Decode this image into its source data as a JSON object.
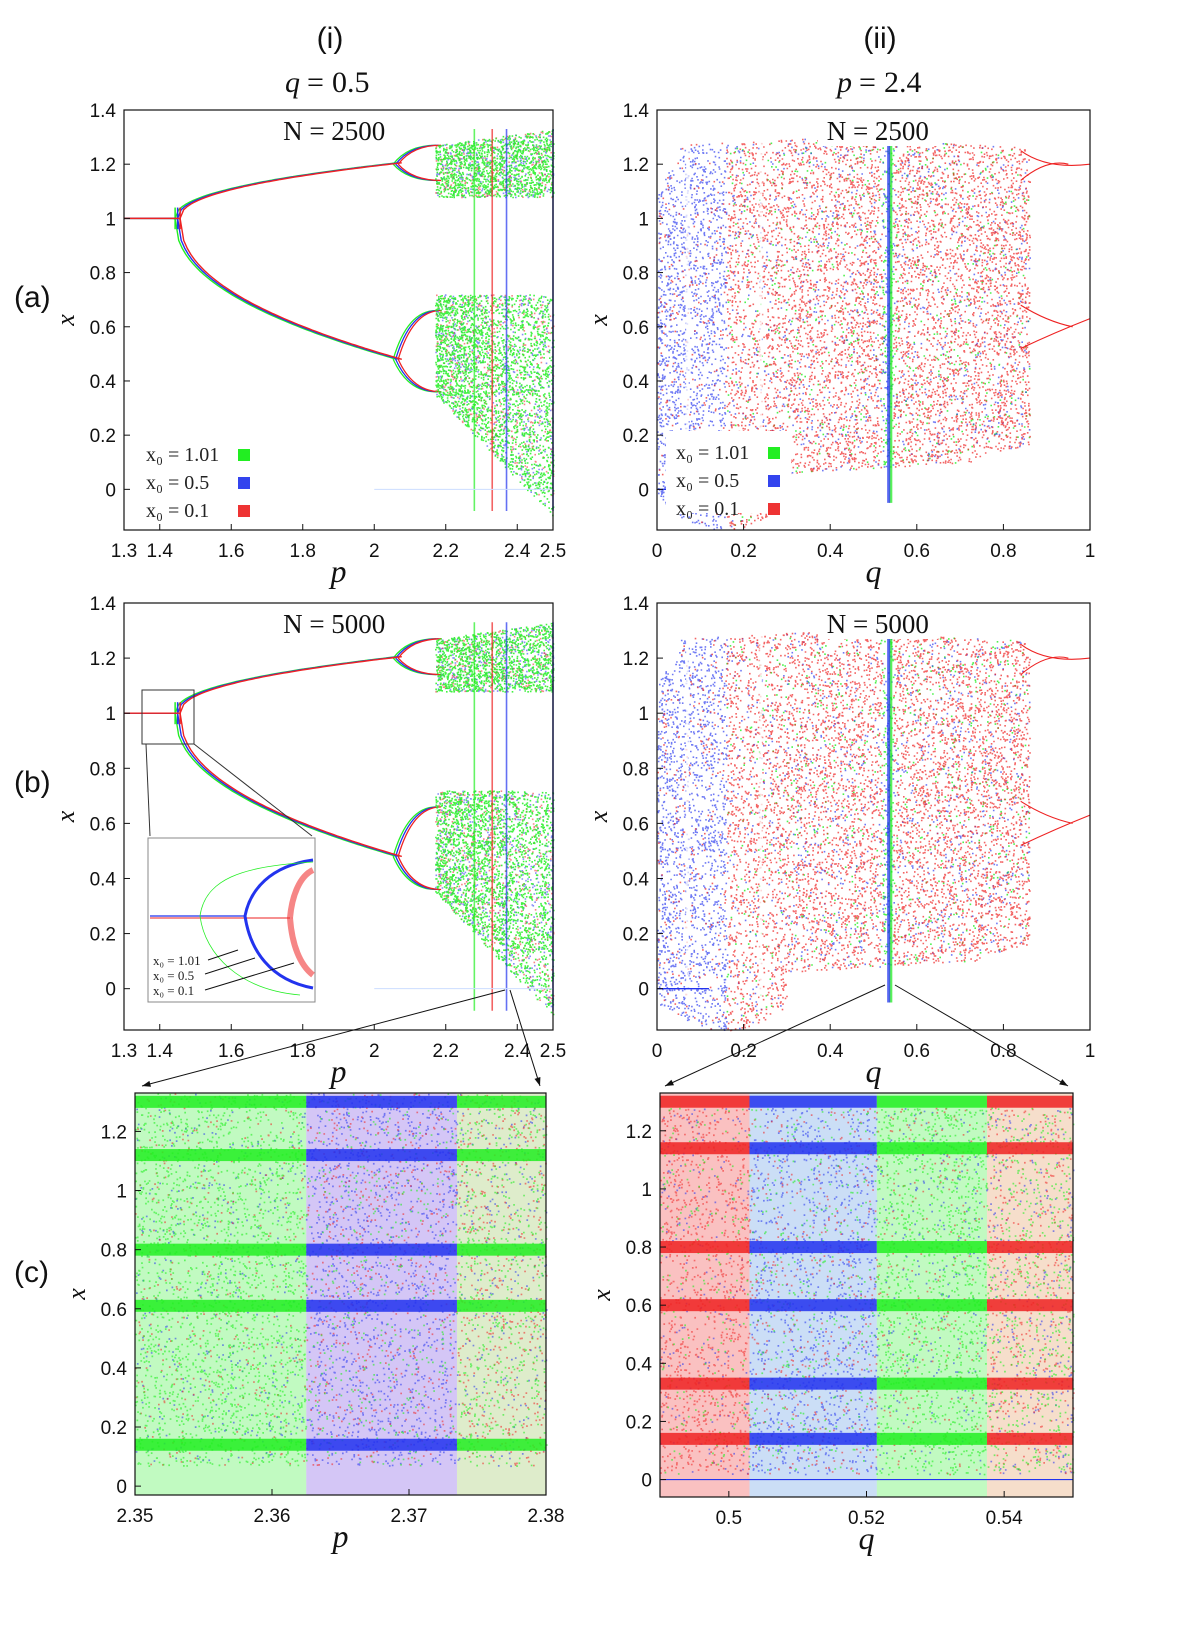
{
  "columns": [
    {
      "label": "(i)",
      "param_symbol": "q",
      "param_value": "0.5"
    },
    {
      "label": "(ii)",
      "param_symbol": "p",
      "param_value": "2.4"
    }
  ],
  "rows": [
    "(a)",
    "(b)",
    "(c)"
  ],
  "legend": {
    "items": [
      {
        "text": "x₀ = 1.01",
        "color": "#22ee22"
      },
      {
        "text": "x₀ = 0.5",
        "color": "#3344ee"
      },
      {
        "text": "x₀ = 0.1",
        "color": "#ee3333"
      }
    ]
  },
  "colors": {
    "green": "#22ee22",
    "blue": "#2233ee",
    "red": "#ee2222",
    "axis": "#111111"
  },
  "chart_data": [
    {
      "id": "a-i",
      "type": "scatter",
      "title": "N = 2500",
      "xlabel": "p",
      "ylabel": "x",
      "xlim": [
        1.3,
        2.5
      ],
      "ylim": [
        -0.15,
        1.4
      ],
      "xticks": [
        1.3,
        1.4,
        1.6,
        1.8,
        2,
        2.2,
        2.4,
        2.5
      ],
      "xtick_labels": [
        "1.3",
        "1.4",
        "1.6",
        "1.8",
        "2",
        "2.2",
        "2.4",
        "2.5"
      ],
      "yticks": [
        0,
        0.2,
        0.4,
        0.6,
        0.8,
        1,
        1.2,
        1.4
      ],
      "ytick_labels": [
        "0",
        "0.2",
        "0.4",
        "0.6",
        "0.8",
        "1",
        "1.2",
        "1.4"
      ],
      "description_values": {
        "fixed_point": 1,
        "first_bifurcation_p": 1.45,
        "period2_upper": 1.2,
        "period2_lower": 0.48,
        "period4_onset_p": 2.06,
        "chaos_onset_p": 2.2
      },
      "legend": true
    },
    {
      "id": "a-ii",
      "type": "scatter",
      "title": "N = 2500",
      "xlabel": "q",
      "ylabel": "x",
      "xlim": [
        0,
        1
      ],
      "ylim": [
        -0.15,
        1.4
      ],
      "xticks": [
        0,
        0.2,
        0.4,
        0.6,
        0.8,
        1
      ],
      "xtick_labels": [
        "0",
        "0.2",
        "0.4",
        "0.6",
        "0.8",
        "1"
      ],
      "yticks": [
        0,
        0.2,
        0.4,
        0.6,
        0.8,
        1,
        1.2,
        1.4
      ],
      "ytick_labels": [
        "0",
        "0.2",
        "0.4",
        "0.6",
        "0.8",
        "1",
        "1.2",
        "1.4"
      ],
      "legend": true
    },
    {
      "id": "b-i",
      "type": "scatter",
      "title": "N = 5000",
      "xlabel": "p",
      "ylabel": "x",
      "xlim": [
        1.3,
        2.5
      ],
      "ylim": [
        -0.15,
        1.4
      ],
      "xticks": [
        1.3,
        1.4,
        1.6,
        1.8,
        2,
        2.2,
        2.4,
        2.5
      ],
      "xtick_labels": [
        "1.3",
        "1.4",
        "1.6",
        "1.8",
        "2",
        "2.2",
        "2.4",
        "2.5"
      ],
      "yticks": [
        0,
        0.2,
        0.4,
        0.6,
        0.8,
        1,
        1.2,
        1.4
      ],
      "ytick_labels": [
        "0",
        "0.2",
        "0.4",
        "0.6",
        "0.8",
        "1",
        "1.2",
        "1.4"
      ],
      "inset": {
        "legend": [
          "x₀ = 1.01",
          "x₀ = 0.5",
          "x₀ = 0.1"
        ]
      }
    },
    {
      "id": "b-ii",
      "type": "scatter",
      "title": "N = 5000",
      "xlabel": "q",
      "ylabel": "x",
      "xlim": [
        0,
        1
      ],
      "ylim": [
        -0.15,
        1.4
      ],
      "xticks": [
        0,
        0.2,
        0.4,
        0.6,
        0.8,
        1
      ],
      "xtick_labels": [
        "0",
        "0.2",
        "0.4",
        "0.6",
        "0.8",
        "1"
      ],
      "yticks": [
        0,
        0.2,
        0.4,
        0.6,
        0.8,
        1,
        1.2,
        1.4
      ],
      "ytick_labels": [
        "0",
        "0.2",
        "0.4",
        "0.6",
        "0.8",
        "1",
        "1.2",
        "1.4"
      ]
    },
    {
      "id": "c-i",
      "type": "scatter",
      "title": "",
      "xlabel": "p",
      "ylabel": "x",
      "xlim": [
        2.35,
        2.38
      ],
      "ylim": [
        -0.03,
        1.33
      ],
      "xticks": [
        2.35,
        2.36,
        2.37,
        2.38
      ],
      "xtick_labels": [
        "2.35",
        "2.36",
        "2.37",
        "2.38"
      ],
      "yticks": [
        0,
        0.2,
        0.4,
        0.6,
        0.8,
        1,
        1.2
      ],
      "ytick_labels": [
        "0",
        "0.2",
        "0.4",
        "0.6",
        "0.8",
        "1",
        "1.2"
      ]
    },
    {
      "id": "c-ii",
      "type": "scatter",
      "title": "",
      "xlabel": "q",
      "ylabel": "x",
      "xlim": [
        0.49,
        0.55
      ],
      "ylim": [
        -0.06,
        1.33
      ],
      "xticks": [
        0.5,
        0.52,
        0.54
      ],
      "xtick_labels": [
        "0.5",
        "0.52",
        "0.54"
      ],
      "yticks": [
        0,
        0.2,
        0.4,
        0.6,
        0.8,
        1,
        1.2
      ],
      "ytick_labels": [
        "0",
        "0.2",
        "0.4",
        "0.6",
        "0.8",
        "1",
        "1.2"
      ]
    }
  ]
}
